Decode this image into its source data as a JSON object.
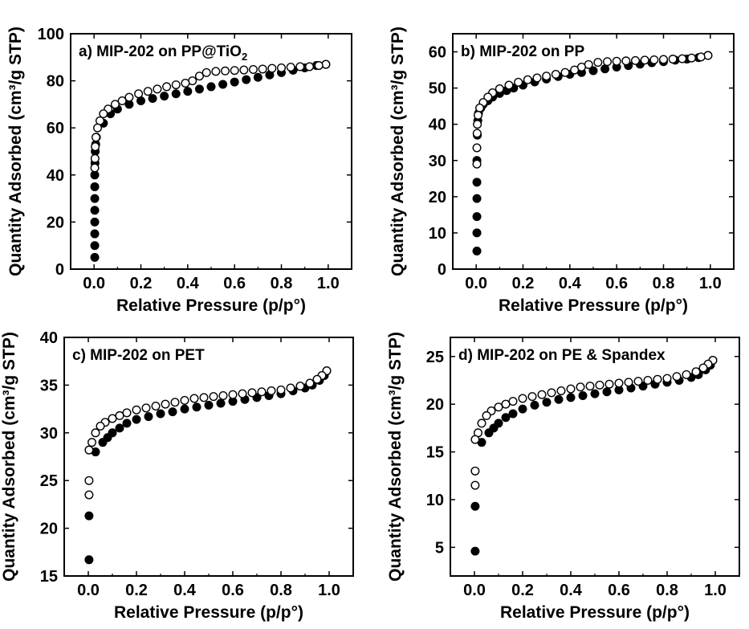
{
  "chart_data": [
    {
      "type": "scatter",
      "title": "a) MIP-202 on PP@TiO",
      "title_subscript": "2",
      "xlabel": "Relative Pressure (p/p°)",
      "ylabel": "Quantity Adsorbed (cm³/g STP)",
      "xlim": [
        -0.1,
        1.1
      ],
      "ylim": [
        0,
        100
      ],
      "xticks": [
        "0.0",
        "0.2",
        "0.4",
        "0.6",
        "0.8",
        "1.0"
      ],
      "yticks": [
        "0",
        "20",
        "40",
        "60",
        "80",
        "100"
      ],
      "grid": false,
      "series": [
        {
          "marker": "filled-circle",
          "x": [
            0.003,
            0.003,
            0.003,
            0.003,
            0.003,
            0.003,
            0.003,
            0.003,
            0.004,
            0.005,
            0.007,
            0.01,
            0.04,
            0.07,
            0.1,
            0.15,
            0.2,
            0.25,
            0.3,
            0.35,
            0.4,
            0.45,
            0.5,
            0.55,
            0.6,
            0.65,
            0.7,
            0.75,
            0.8,
            0.85,
            0.9,
            0.95,
            0.99
          ],
          "y": [
            5,
            10,
            15,
            20,
            25,
            30,
            35,
            40,
            45,
            50,
            53,
            56,
            62,
            66,
            68,
            70,
            71.5,
            72.5,
            73.5,
            74.5,
            75.5,
            76.5,
            77.5,
            78.5,
            79.5,
            80.5,
            81.5,
            82.5,
            83.5,
            84.5,
            85.5,
            86.5,
            87
          ]
        },
        {
          "marker": "open-circle",
          "x": [
            0.99,
            0.96,
            0.92,
            0.88,
            0.84,
            0.8,
            0.76,
            0.72,
            0.68,
            0.64,
            0.6,
            0.56,
            0.52,
            0.48,
            0.45,
            0.42,
            0.39,
            0.35,
            0.31,
            0.27,
            0.23,
            0.19,
            0.15,
            0.12,
            0.09,
            0.06,
            0.04,
            0.025,
            0.015,
            0.008,
            0.005,
            0.004,
            0.003
          ],
          "y": [
            87,
            86.5,
            86,
            86,
            85.8,
            85.5,
            85.3,
            85,
            84.8,
            84.6,
            84.4,
            84.2,
            84,
            83.5,
            82,
            80,
            79,
            78.3,
            77.5,
            76.5,
            75.5,
            74.5,
            73,
            71.5,
            70,
            68,
            66,
            63,
            60,
            56,
            52,
            47,
            43
          ]
        }
      ]
    },
    {
      "type": "scatter",
      "title": "b) MIP-202 on PP",
      "xlabel": "Relative Pressure (p/p°)",
      "ylabel": "Quantity Adsorbed (cm³/g STP)",
      "xlim": [
        -0.1,
        1.1
      ],
      "ylim": [
        0,
        65
      ],
      "xticks": [
        "0.0",
        "0.2",
        "0.4",
        "0.6",
        "0.8",
        "1.0"
      ],
      "yticks": [
        "0",
        "10",
        "20",
        "30",
        "40",
        "50",
        "60"
      ],
      "grid": false,
      "series": [
        {
          "marker": "filled-circle",
          "x": [
            0.003,
            0.003,
            0.003,
            0.003,
            0.003,
            0.003,
            0.005,
            0.007,
            0.01,
            0.02,
            0.03,
            0.05,
            0.07,
            0.1,
            0.13,
            0.16,
            0.2,
            0.25,
            0.3,
            0.35,
            0.4,
            0.45,
            0.5,
            0.55,
            0.6,
            0.65,
            0.7,
            0.75,
            0.8,
            0.85,
            0.9,
            0.95,
            0.99
          ],
          "y": [
            5,
            10,
            14.5,
            19.5,
            24,
            30,
            37,
            41,
            43,
            44.5,
            45.5,
            46.5,
            47.5,
            48.5,
            49.3,
            50,
            50.8,
            51.7,
            52.5,
            53.2,
            53.8,
            54.3,
            54.8,
            55.3,
            55.8,
            56.2,
            56.6,
            57,
            57.3,
            57.7,
            58,
            58.4,
            59
          ]
        },
        {
          "marker": "open-circle",
          "x": [
            0.99,
            0.96,
            0.92,
            0.88,
            0.84,
            0.8,
            0.76,
            0.72,
            0.68,
            0.64,
            0.6,
            0.56,
            0.52,
            0.48,
            0.45,
            0.42,
            0.38,
            0.34,
            0.3,
            0.26,
            0.22,
            0.18,
            0.14,
            0.1,
            0.07,
            0.05,
            0.03,
            0.015,
            0.008,
            0.005,
            0.004,
            0.003,
            0.003
          ],
          "y": [
            59,
            58.6,
            58.3,
            58.1,
            58,
            57.9,
            57.8,
            57.7,
            57.6,
            57.5,
            57.4,
            57.3,
            57.1,
            56.5,
            55.8,
            55,
            54.3,
            53.8,
            53.3,
            52.8,
            52.3,
            51.6,
            50.8,
            49.8,
            48.7,
            47.5,
            46,
            44.5,
            42.5,
            40,
            37.5,
            33.5,
            29
          ]
        }
      ]
    },
    {
      "type": "scatter",
      "title": "c) MIP-202 on PET",
      "xlabel": "Relative Pressure (p/p°)",
      "ylabel": "Quantity Adsorbed (cm³/g STP)",
      "xlim": [
        -0.1,
        1.1
      ],
      "ylim": [
        15,
        40
      ],
      "xticks": [
        "0.0",
        "0.2",
        "0.4",
        "0.6",
        "0.8",
        "1.0"
      ],
      "yticks": [
        "15",
        "20",
        "25",
        "30",
        "35",
        "40"
      ],
      "grid": false,
      "series": [
        {
          "marker": "filled-circle",
          "x": [
            0.003,
            0.003,
            0.03,
            0.06,
            0.08,
            0.1,
            0.13,
            0.16,
            0.2,
            0.25,
            0.3,
            0.35,
            0.4,
            0.45,
            0.5,
            0.55,
            0.6,
            0.65,
            0.7,
            0.75,
            0.8,
            0.85,
            0.9,
            0.93,
            0.96,
            0.98,
            0.99
          ],
          "y": [
            16.7,
            21.3,
            28,
            29,
            29.5,
            30,
            30.5,
            31,
            31.4,
            31.7,
            32,
            32.2,
            32.5,
            32.7,
            32.9,
            33.1,
            33.3,
            33.5,
            33.7,
            33.9,
            34.1,
            34.4,
            34.7,
            35,
            35.5,
            36,
            36.5
          ]
        },
        {
          "marker": "open-circle",
          "x": [
            0.99,
            0.97,
            0.95,
            0.92,
            0.88,
            0.84,
            0.8,
            0.76,
            0.72,
            0.68,
            0.64,
            0.6,
            0.56,
            0.52,
            0.48,
            0.44,
            0.4,
            0.36,
            0.32,
            0.28,
            0.24,
            0.2,
            0.16,
            0.13,
            0.1,
            0.07,
            0.05,
            0.03,
            0.015,
            0.003,
            0.003,
            0.003
          ],
          "y": [
            36.5,
            36,
            35.6,
            35.2,
            34.9,
            34.7,
            34.5,
            34.4,
            34.3,
            34.2,
            34.1,
            34,
            33.9,
            33.8,
            33.7,
            33.6,
            33.4,
            33.2,
            33,
            32.8,
            32.6,
            32.4,
            32.1,
            31.8,
            31.5,
            31.1,
            30.7,
            30,
            29,
            28.2,
            25,
            23.5
          ]
        }
      ]
    },
    {
      "type": "scatter",
      "title": "d) MIP-202 on PE & Spandex",
      "xlabel": "Relative Pressure (p/p°)",
      "ylabel": "Quantity Adsorbed (cm³/g STP)",
      "xlim": [
        -0.1,
        1.1
      ],
      "ylim": [
        2,
        27
      ],
      "xticks": [
        "0.0",
        "0.2",
        "0.4",
        "0.6",
        "0.8",
        "1.0"
      ],
      "yticks": [
        "5",
        "10",
        "15",
        "20",
        "25"
      ],
      "grid": false,
      "series": [
        {
          "marker": "filled-circle",
          "x": [
            0.003,
            0.003,
            0.03,
            0.06,
            0.08,
            0.1,
            0.13,
            0.16,
            0.2,
            0.25,
            0.3,
            0.35,
            0.4,
            0.45,
            0.5,
            0.55,
            0.6,
            0.65,
            0.7,
            0.75,
            0.8,
            0.85,
            0.9,
            0.93,
            0.96,
            0.98,
            0.99
          ],
          "y": [
            4.6,
            9.3,
            16,
            17,
            17.5,
            18,
            18.6,
            19,
            19.5,
            19.9,
            20.2,
            20.5,
            20.7,
            20.9,
            21.1,
            21.3,
            21.5,
            21.7,
            21.9,
            22.1,
            22.3,
            22.5,
            22.8,
            23.1,
            23.6,
            24.1,
            24.6
          ]
        },
        {
          "marker": "open-circle",
          "x": [
            0.99,
            0.97,
            0.95,
            0.92,
            0.88,
            0.84,
            0.8,
            0.76,
            0.72,
            0.68,
            0.64,
            0.6,
            0.56,
            0.52,
            0.48,
            0.44,
            0.4,
            0.36,
            0.32,
            0.28,
            0.24,
            0.2,
            0.16,
            0.13,
            0.1,
            0.07,
            0.05,
            0.03,
            0.015,
            0.003,
            0.003,
            0.003
          ],
          "y": [
            24.6,
            24.2,
            23.8,
            23.4,
            23.1,
            22.9,
            22.7,
            22.6,
            22.5,
            22.4,
            22.3,
            22.2,
            22.1,
            22,
            21.9,
            21.8,
            21.6,
            21.4,
            21.2,
            21,
            20.8,
            20.6,
            20.3,
            20,
            19.7,
            19.3,
            18.8,
            18,
            17,
            16.3,
            13,
            11.5
          ]
        }
      ]
    }
  ]
}
